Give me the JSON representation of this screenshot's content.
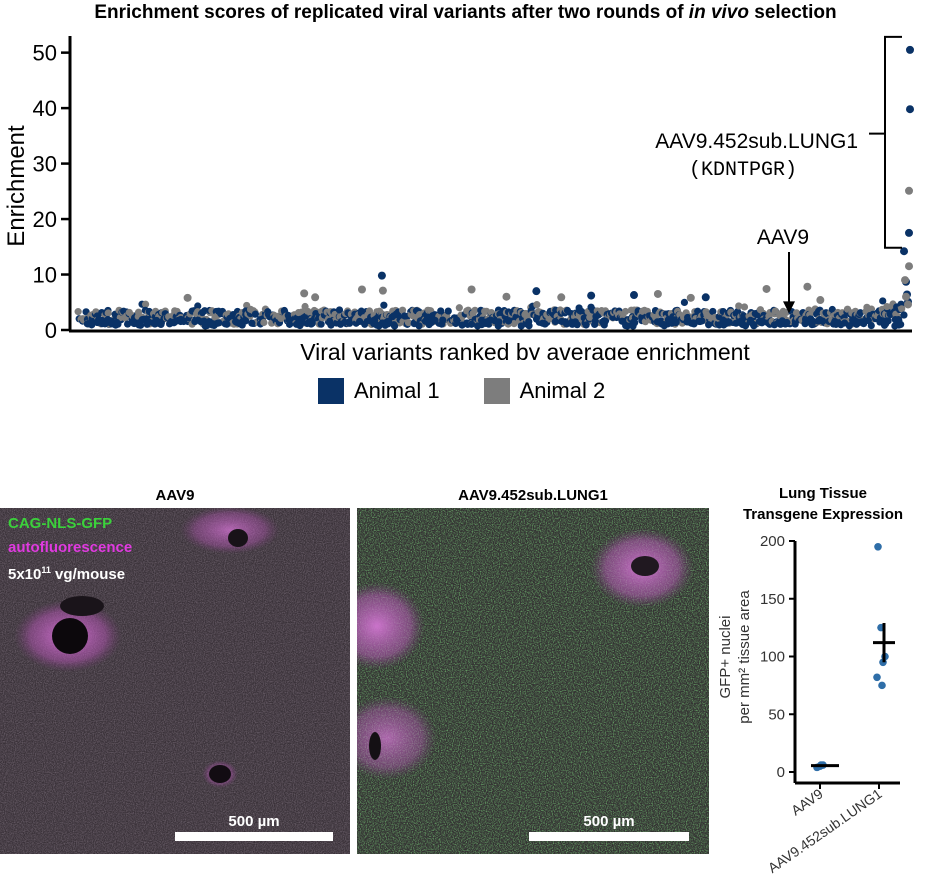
{
  "header": {
    "title_prefix": "Enrichment scores of replicated viral variants after two rounds of ",
    "title_italic": "in vivo",
    "title_suffix": " selection"
  },
  "legend": {
    "items": [
      {
        "label": "Animal 1",
        "color": "#0a3266"
      },
      {
        "label": "Animal 2",
        "color": "#7d7d7d"
      }
    ]
  },
  "chart_data": [
    {
      "type": "scatter",
      "title": "Enrichment scores of replicated viral variants after two rounds of in vivo selection",
      "xlabel": "Viral variants ranked by average enrichment",
      "ylabel": "Enrichment",
      "ylim": [
        0,
        53
      ],
      "yticks": [
        0,
        10,
        20,
        30,
        40,
        50
      ],
      "x_ticks_shown": false,
      "series": [
        {
          "name": "Animal 1",
          "color": "#0a3266",
          "points": [
            [
              380,
              9.8
            ],
            [
              535,
              7.0
            ],
            [
              590,
              6.2
            ],
            [
              633,
              6.3
            ],
            [
              705,
              5.9
            ],
            [
              904,
              14.2
            ],
            [
              906,
              8.7
            ],
            [
              907,
              6.4
            ],
            [
              908,
              5.1
            ],
            [
              909,
              17.5
            ],
            [
              910,
              39.8
            ],
            [
              910,
              50.5
            ]
          ]
        },
        {
          "name": "Animal 2",
          "color": "#7d7d7d",
          "points": [
            [
              185,
              5.8
            ],
            [
              302,
              6.6
            ],
            [
              313,
              5.9
            ],
            [
              360,
              7.3
            ],
            [
              381,
              7.1
            ],
            [
              470,
              7.3
            ],
            [
              505,
              6.0
            ],
            [
              560,
              5.9
            ],
            [
              657,
              6.5
            ],
            [
              690,
              5.8
            ],
            [
              766,
              7.4
            ],
            [
              807,
              7.8
            ],
            [
              820,
              5.4
            ],
            [
              905,
              9.0
            ],
            [
              906,
              6.0
            ],
            [
              908,
              4.6
            ],
            [
              909,
              25.1
            ],
            [
              909,
              11.5
            ]
          ]
        }
      ],
      "background_points": "several hundred low-enrichment variants (~1 to 5) for both animals across the ranked x-axis",
      "annotations": [
        {
          "text": "AAV9.452sub.LUNG1",
          "subtext": "(KDNTPGR)",
          "bracket_range": [
            15,
            50.5
          ]
        },
        {
          "text": "AAV9",
          "arrow_to": 3.0
        }
      ]
    },
    {
      "type": "scatter",
      "title": "Lung Tissue Transgene Expression",
      "title_lines": [
        "Lung Tissue",
        "Transgene Expression"
      ],
      "xlabel": "",
      "ylabel": "GFP+ nuclei per mm² tissue area",
      "ylabel_lines": [
        "GFP+ nuclei",
        "per mm² tissue area"
      ],
      "ylim": [
        0,
        200
      ],
      "yticks": [
        0,
        50,
        100,
        150,
        200
      ],
      "categories": [
        "AAV9",
        "AAV9.452sub.LUNG1"
      ],
      "groups": [
        {
          "category": "AAV9",
          "points": [
            4,
            5,
            6,
            6
          ],
          "mean": 5.5,
          "sem": 0.6
        },
        {
          "category": "AAV9.452sub.LUNG1",
          "points": [
            195,
            125,
            100,
            95,
            82,
            75
          ],
          "mean": 112,
          "sem": 17
        }
      ],
      "point_color": "#2f6ea8"
    }
  ],
  "micrographs": [
    {
      "title": "AAV9",
      "scale": "500 µm",
      "labels": [
        {
          "text": "CAG-NLS-GFP",
          "color": "#3bd13b"
        },
        {
          "text": "autofluorescence",
          "color": "#e03ae0"
        },
        {
          "text_base": "5x10",
          "text_sup": "11",
          "text_rest": " vg/mouse",
          "color": "#ffffff"
        }
      ]
    },
    {
      "title": "AAV9.452sub.LUNG1",
      "scale": "500 µm"
    }
  ]
}
